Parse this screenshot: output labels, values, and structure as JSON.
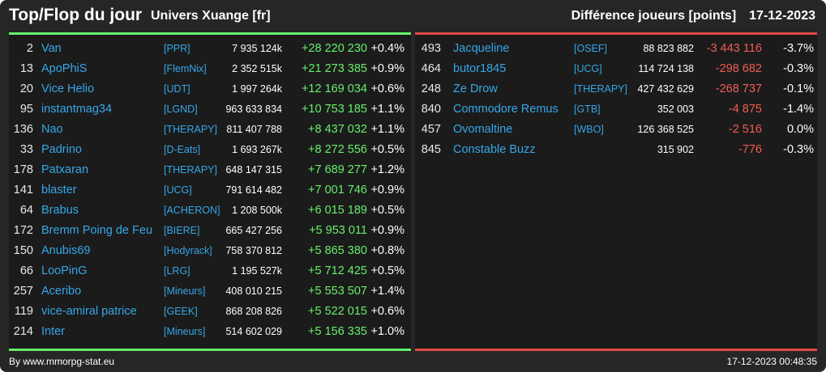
{
  "header": {
    "title": "Top/Flop du jour",
    "subtitle": "Univers Xuange [fr]",
    "metric": "Différence joueurs [points]",
    "date": "17-12-2023"
  },
  "colors": {
    "top_accent": "#66ef6b",
    "flop_accent": "#e34a46",
    "link": "#35a7e8",
    "negative": "#f25c54"
  },
  "top": [
    {
      "rank": "2",
      "name": "Van",
      "ally": "[PPR]",
      "total": "7 935 124k",
      "diff": "+28 220 230",
      "pct": "+0.4%"
    },
    {
      "rank": "13",
      "name": "ApoPhiS",
      "ally": "[FlemNix]",
      "total": "2 352 515k",
      "diff": "+21 273 385",
      "pct": "+0.9%"
    },
    {
      "rank": "20",
      "name": "Vice Helio",
      "ally": "[UDT]",
      "total": "1 997 264k",
      "diff": "+12 169 034",
      "pct": "+0.6%"
    },
    {
      "rank": "95",
      "name": "instantmag34",
      "ally": "[LGND]",
      "total": "963 633 834",
      "diff": "+10 753 185",
      "pct": "+1.1%"
    },
    {
      "rank": "136",
      "name": "Nao",
      "ally": "[THERAPY]",
      "total": "811 407 788",
      "diff": "+8 437 032",
      "pct": "+1.1%"
    },
    {
      "rank": "33",
      "name": "Padrino",
      "ally": "[D-Eats]",
      "total": "1 693 267k",
      "diff": "+8 272 556",
      "pct": "+0.5%"
    },
    {
      "rank": "178",
      "name": "Patxaran",
      "ally": "[THERAPY]",
      "total": "648 147 315",
      "diff": "+7 689 277",
      "pct": "+1.2%"
    },
    {
      "rank": "141",
      "name": "blaster",
      "ally": "[UCG]",
      "total": "791 614 482",
      "diff": "+7 001 746",
      "pct": "+0.9%"
    },
    {
      "rank": "64",
      "name": "Brabus",
      "ally": "[ACHERON]",
      "total": "1 208 500k",
      "diff": "+6 015 189",
      "pct": "+0.5%"
    },
    {
      "rank": "172",
      "name": "Bremm Poing de Feu",
      "ally": "[BIERE]",
      "total": "665 427 256",
      "diff": "+5 953 011",
      "pct": "+0.9%"
    },
    {
      "rank": "150",
      "name": "Anubis69",
      "ally": "[Hodyrack]",
      "total": "758 370 812",
      "diff": "+5 865 380",
      "pct": "+0.8%"
    },
    {
      "rank": "66",
      "name": "LooPinG",
      "ally": "[LRG]",
      "total": "1 195 527k",
      "diff": "+5 712 425",
      "pct": "+0.5%"
    },
    {
      "rank": "257",
      "name": "Aceribo",
      "ally": "[Mineurs]",
      "total": "408 010 215",
      "diff": "+5 553 507",
      "pct": "+1.4%"
    },
    {
      "rank": "119",
      "name": "vice-amiral patrice",
      "ally": "[GEEK]",
      "total": "868 208 826",
      "diff": "+5 522 015",
      "pct": "+0.6%"
    },
    {
      "rank": "214",
      "name": "Inter",
      "ally": "[Mineurs]",
      "total": "514 602 029",
      "diff": "+5 156 335",
      "pct": "+1.0%"
    }
  ],
  "flop": [
    {
      "rank": "493",
      "name": "Jacqueline",
      "ally": "[OSEF]",
      "total": "88 823 882",
      "diff": "-3 443 116",
      "pct": "-3.7%"
    },
    {
      "rank": "464",
      "name": "butor1845",
      "ally": "[UCG]",
      "total": "114 724 138",
      "diff": "-298 682",
      "pct": "-0.3%"
    },
    {
      "rank": "248",
      "name": "Ze Drow",
      "ally": "[THERAPY]",
      "total": "427 432 629",
      "diff": "-268 737",
      "pct": "-0.1%"
    },
    {
      "rank": "840",
      "name": "Commodore Remus",
      "ally": "[GTB]",
      "total": "352 003",
      "diff": "-4 875",
      "pct": "-1.4%"
    },
    {
      "rank": "457",
      "name": "Ovomaltine",
      "ally": "[WBO]",
      "total": "126 368 525",
      "diff": "-2 516",
      "pct": "0.0%"
    },
    {
      "rank": "845",
      "name": "Constable Buzz",
      "ally": "",
      "total": "315 902",
      "diff": "-776",
      "pct": "-0.3%"
    }
  ],
  "footer": {
    "source": "By www.mmorpg-stat.eu",
    "timestamp": "17-12-2023 00:48:35"
  }
}
